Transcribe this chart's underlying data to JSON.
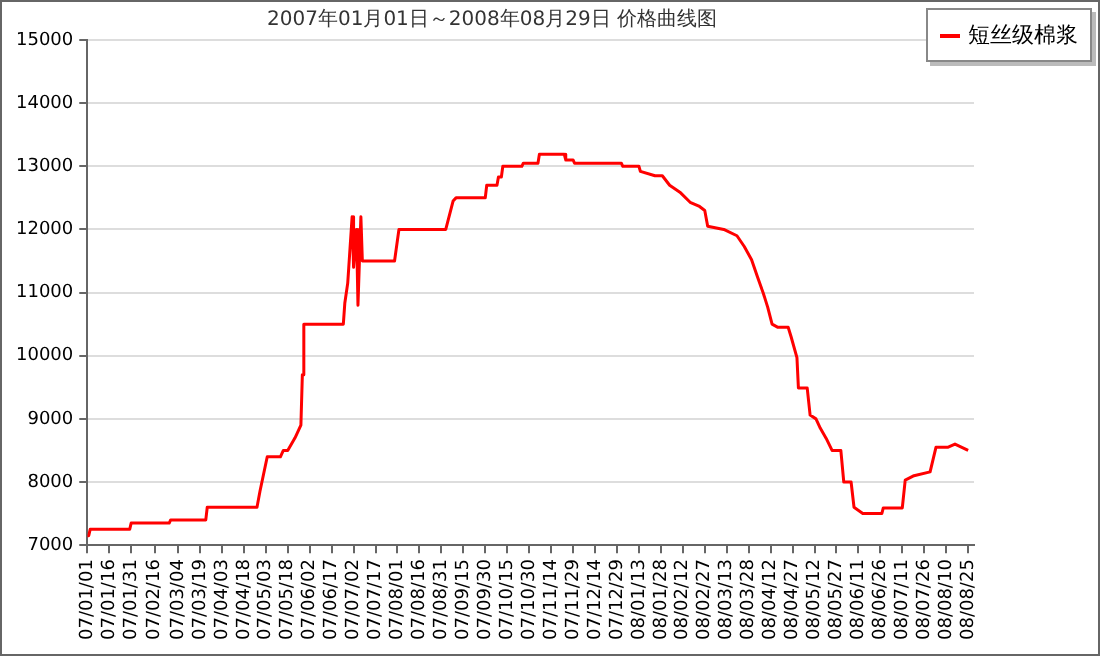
{
  "chart_data": {
    "type": "line",
    "title": "2007年01月01日～2008年08月29日 价格曲线图",
    "xlim": [
      "2007-01-01",
      "2008-08-29"
    ],
    "xticks": [
      {
        "value": "2007-01-01",
        "label": "07/01/01"
      },
      {
        "value": "2007-01-16",
        "label": "07/01/16"
      },
      {
        "value": "2007-01-31",
        "label": "07/01/31"
      },
      {
        "value": "2007-02-16",
        "label": "07/02/16"
      },
      {
        "value": "2007-03-04",
        "label": "07/03/04"
      },
      {
        "value": "2007-03-19",
        "label": "07/03/19"
      },
      {
        "value": "2007-04-03",
        "label": "07/04/03"
      },
      {
        "value": "2007-04-18",
        "label": "07/04/18"
      },
      {
        "value": "2007-05-03",
        "label": "07/05/03"
      },
      {
        "value": "2007-05-18",
        "label": "07/05/18"
      },
      {
        "value": "2007-06-02",
        "label": "07/06/02"
      },
      {
        "value": "2007-06-17",
        "label": "07/06/17"
      },
      {
        "value": "2007-07-02",
        "label": "07/07/02"
      },
      {
        "value": "2007-07-17",
        "label": "07/07/17"
      },
      {
        "value": "2007-08-01",
        "label": "07/08/01"
      },
      {
        "value": "2007-08-16",
        "label": "07/08/16"
      },
      {
        "value": "2007-08-31",
        "label": "07/08/31"
      },
      {
        "value": "2007-09-15",
        "label": "07/09/15"
      },
      {
        "value": "2007-09-30",
        "label": "07/09/30"
      },
      {
        "value": "2007-10-15",
        "label": "07/10/15"
      },
      {
        "value": "2007-10-30",
        "label": "07/10/30"
      },
      {
        "value": "2007-11-14",
        "label": "07/11/14"
      },
      {
        "value": "2007-11-29",
        "label": "07/11/29"
      },
      {
        "value": "2007-12-14",
        "label": "07/12/14"
      },
      {
        "value": "2007-12-29",
        "label": "07/12/29"
      },
      {
        "value": "2008-01-13",
        "label": "08/01/13"
      },
      {
        "value": "2008-01-28",
        "label": "08/01/28"
      },
      {
        "value": "2008-02-12",
        "label": "08/02/12"
      },
      {
        "value": "2008-02-27",
        "label": "08/02/27"
      },
      {
        "value": "2008-03-13",
        "label": "08/03/13"
      },
      {
        "value": "2008-03-28",
        "label": "08/03/28"
      },
      {
        "value": "2008-04-12",
        "label": "08/04/12"
      },
      {
        "value": "2008-04-27",
        "label": "08/04/27"
      },
      {
        "value": "2008-05-12",
        "label": "08/05/12"
      },
      {
        "value": "2008-05-27",
        "label": "08/05/27"
      },
      {
        "value": "2008-06-11",
        "label": "08/06/11"
      },
      {
        "value": "2008-06-26",
        "label": "08/06/26"
      },
      {
        "value": "2008-07-11",
        "label": "08/07/11"
      },
      {
        "value": "2008-07-26",
        "label": "08/07/26"
      },
      {
        "value": "2008-08-10",
        "label": "08/08/10"
      },
      {
        "value": "2008-08-25",
        "label": "08/08/25"
      }
    ],
    "ylim": [
      7000,
      15000
    ],
    "yticks": [
      7000,
      8000,
      9000,
      10000,
      11000,
      12000,
      13000,
      14000,
      15000
    ],
    "grid": "y",
    "legend": "top right",
    "marker": "none",
    "line_style": "solid",
    "x": [
      "2007-01-01",
      "2007-01-02",
      "2007-01-03",
      "2007-01-30",
      "2007-01-31",
      "2007-02-26",
      "2007-02-27",
      "2007-03-23",
      "2007-03-24",
      "2007-04-27",
      "2007-04-29",
      "2007-05-04",
      "2007-05-13",
      "2007-05-15",
      "2007-05-18",
      "2007-05-23",
      "2007-05-27",
      "2007-05-28",
      "2007-05-29",
      "2007-06-25",
      "2007-06-26",
      "2007-06-28",
      "2007-07-01",
      "2007-07-02",
      "2007-07-04",
      "2007-07-05",
      "2007-07-07",
      "2007-07-08",
      "2007-07-30",
      "2007-08-02",
      "2007-09-03",
      "2007-09-08",
      "2007-09-10",
      "2007-09-30",
      "2007-10-01",
      "2007-10-08",
      "2007-10-09",
      "2007-10-11",
      "2007-10-12",
      "2007-10-25",
      "2007-10-26",
      "2007-11-05",
      "2007-11-06",
      "2007-11-23",
      "2007-11-24",
      "2007-11-29",
      "2007-11-30",
      "2008-01-01",
      "2008-01-02",
      "2008-01-13",
      "2008-01-14",
      "2008-01-24",
      "2008-01-29",
      "2008-02-03",
      "2008-02-10",
      "2008-02-17",
      "2008-02-23",
      "2008-02-27",
      "2008-02-29",
      "2008-03-11",
      "2008-03-20",
      "2008-03-25",
      "2008-03-30",
      "2008-04-03",
      "2008-04-07",
      "2008-04-10",
      "2008-04-13",
      "2008-04-17",
      "2008-04-24",
      "2008-04-26",
      "2008-04-30",
      "2008-05-01",
      "2008-05-07",
      "2008-05-09",
      "2008-05-13",
      "2008-05-16",
      "2008-05-20",
      "2008-05-24",
      "2008-05-30",
      "2008-06-01",
      "2008-06-06",
      "2008-06-08",
      "2008-06-14",
      "2008-06-27",
      "2008-06-28",
      "2008-07-11",
      "2008-07-13",
      "2008-07-19",
      "2008-07-30",
      "2008-08-03",
      "2008-08-11",
      "2008-08-16",
      "2008-08-25"
    ],
    "series": [
      {
        "name": "短丝级棉浆",
        "color": "#ff0000",
        "values": [
          7150,
          7150,
          7250,
          7250,
          7350,
          7350,
          7400,
          7400,
          7600,
          7600,
          7850,
          8400,
          8400,
          8500,
          8500,
          8700,
          8900,
          9700,
          10500,
          10500,
          10830,
          11150,
          12200,
          11400,
          12000,
          10800,
          12200,
          11500,
          11500,
          12000,
          12000,
          12450,
          12500,
          12500,
          12700,
          12700,
          12830,
          12830,
          13000,
          13000,
          13050,
          13050,
          13190,
          13190,
          13100,
          13100,
          13050,
          13050,
          13000,
          13000,
          12920,
          12850,
          12850,
          12700,
          12590,
          12430,
          12370,
          12300,
          12050,
          12000,
          11900,
          11730,
          11520,
          11250,
          10990,
          10770,
          10500,
          10450,
          10450,
          10300,
          9970,
          9490,
          9490,
          9060,
          9000,
          8850,
          8690,
          8500,
          8500,
          8000,
          8000,
          7600,
          7500,
          7500,
          7590,
          7590,
          8030,
          8100,
          8160,
          8550,
          8550,
          8600,
          8500
        ]
      }
    ]
  }
}
